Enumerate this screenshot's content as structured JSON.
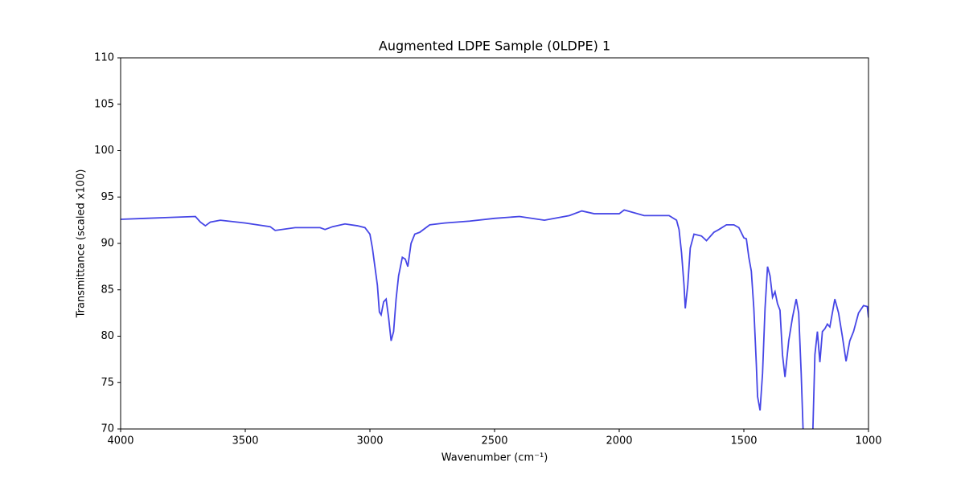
{
  "chart_data": {
    "type": "line",
    "title": "Augmented LDPE Sample (0LDPE) 1",
    "x_label": "Wavenumber (cm⁻¹)",
    "y_label": "Transmittance (scaled x100)",
    "color": "#4646e6",
    "x": [
      4000,
      3900,
      3800,
      3700,
      3680,
      3660,
      3640,
      3600,
      3500,
      3400,
      3380,
      3300,
      3200,
      3180,
      3150,
      3100,
      3050,
      3020,
      3000,
      2990,
      2980,
      2970,
      2962,
      2955,
      2945,
      2935,
      2925,
      2915,
      2905,
      2895,
      2885,
      2870,
      2858,
      2848,
      2835,
      2820,
      2800,
      2760,
      2700,
      2600,
      2500,
      2400,
      2300,
      2200,
      2150,
      2100,
      2000,
      1980,
      1900,
      1800,
      1770,
      1760,
      1750,
      1740,
      1735,
      1725,
      1715,
      1700,
      1670,
      1650,
      1620,
      1600,
      1570,
      1540,
      1520,
      1500,
      1490,
      1480,
      1470,
      1460,
      1450,
      1445,
      1435,
      1425,
      1415,
      1405,
      1395,
      1385,
      1375,
      1365,
      1355,
      1345,
      1335,
      1320,
      1305,
      1290,
      1280,
      1270,
      1260,
      1240,
      1225,
      1215,
      1205,
      1195,
      1185,
      1175,
      1165,
      1155,
      1135,
      1120,
      1105,
      1090,
      1075,
      1060,
      1040,
      1020,
      1005,
      1000
    ],
    "values": [
      92.6,
      92.7,
      92.8,
      92.9,
      92.3,
      91.9,
      92.3,
      92.5,
      92.2,
      91.8,
      91.4,
      91.7,
      91.7,
      91.5,
      91.8,
      92.1,
      91.9,
      91.7,
      91.0,
      89.5,
      87.5,
      85.5,
      82.6,
      82.3,
      83.7,
      84.0,
      82.0,
      79.5,
      80.5,
      84.0,
      86.5,
      88.5,
      88.3,
      87.5,
      90.0,
      91.0,
      91.2,
      92.0,
      92.2,
      92.4,
      92.7,
      92.9,
      92.5,
      93.0,
      93.5,
      93.2,
      93.2,
      93.6,
      93.0,
      93.0,
      92.5,
      91.5,
      89.0,
      85.5,
      83.0,
      85.5,
      89.5,
      91.0,
      90.8,
      90.3,
      91.2,
      91.5,
      92.0,
      92.0,
      91.7,
      90.6,
      90.5,
      88.5,
      87.0,
      83.0,
      77.0,
      73.5,
      72.0,
      76.0,
      83.0,
      87.5,
      86.5,
      84.2,
      84.8,
      83.5,
      82.8,
      78.0,
      75.6,
      79.5,
      82.0,
      84.0,
      82.5,
      76.0,
      68.0,
      62.0,
      68.0,
      78.0,
      80.5,
      77.2,
      80.5,
      80.8,
      81.3,
      81.0,
      84.0,
      82.5,
      80.0,
      77.3,
      79.5,
      80.5,
      82.5,
      83.3,
      83.2,
      82.0
    ],
    "xlim": [
      4000,
      1000
    ],
    "xticks": [
      4000,
      3500,
      3000,
      2500,
      2000,
      1500,
      1000
    ],
    "ylim": [
      70,
      110
    ],
    "yticks": [
      70,
      75,
      80,
      85,
      90,
      95,
      100,
      105,
      110
    ]
  }
}
